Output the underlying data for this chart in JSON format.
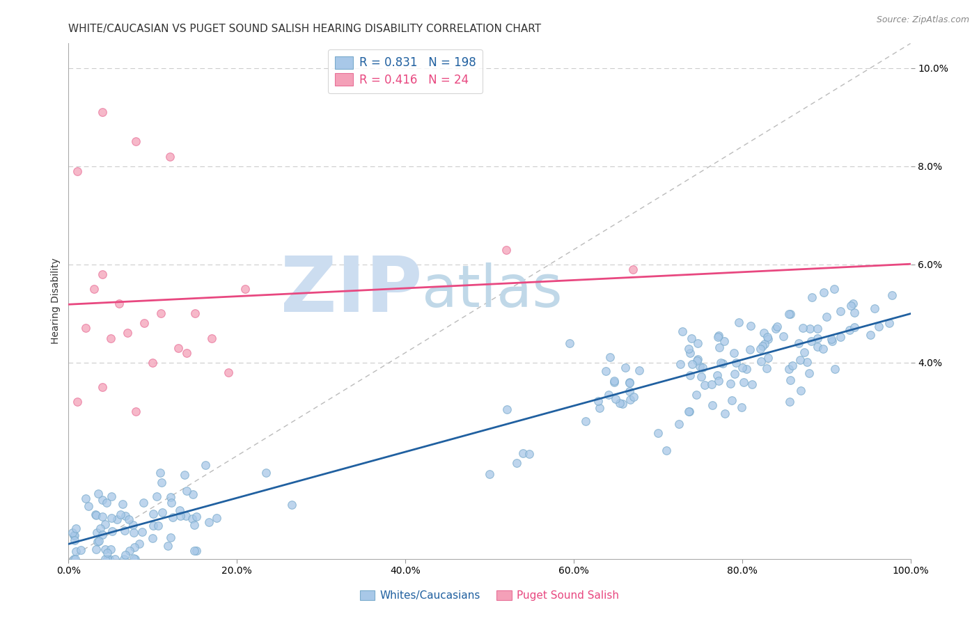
{
  "title": "WHITE/CAUCASIAN VS PUGET SOUND SALISH HEARING DISABILITY CORRELATION CHART",
  "source": "Source: ZipAtlas.com",
  "ylabel": "Hearing Disability",
  "xlabel_blue": "Whites/Caucasians",
  "xlabel_pink": "Puget Sound Salish",
  "blue_R": 0.831,
  "blue_N": 198,
  "pink_R": 0.416,
  "pink_N": 24,
  "blue_color": "#a8c8e8",
  "pink_color": "#f4a0b8",
  "blue_edge_color": "#7aabcc",
  "pink_edge_color": "#e87098",
  "blue_line_color": "#2060a0",
  "pink_line_color": "#e84880",
  "diagonal_color": "#bbbbbb",
  "background_color": "#ffffff",
  "grid_color": "#cccccc",
  "xlim": [
    0,
    1.0
  ],
  "ylim": [
    0,
    0.105
  ],
  "xtick_vals": [
    0.0,
    0.2,
    0.4,
    0.6,
    0.8,
    1.0
  ],
  "ytick_vals": [
    0.04,
    0.06,
    0.08,
    0.1
  ],
  "watermark_zip": "ZIP",
  "watermark_atlas": "atlas",
  "watermark_color_zip": "#ccddf0",
  "watermark_color_atlas": "#c0d8e8",
  "title_fontsize": 11,
  "legend_fontsize": 12,
  "axis_label_fontsize": 10,
  "tick_fontsize": 10,
  "source_fontsize": 9
}
